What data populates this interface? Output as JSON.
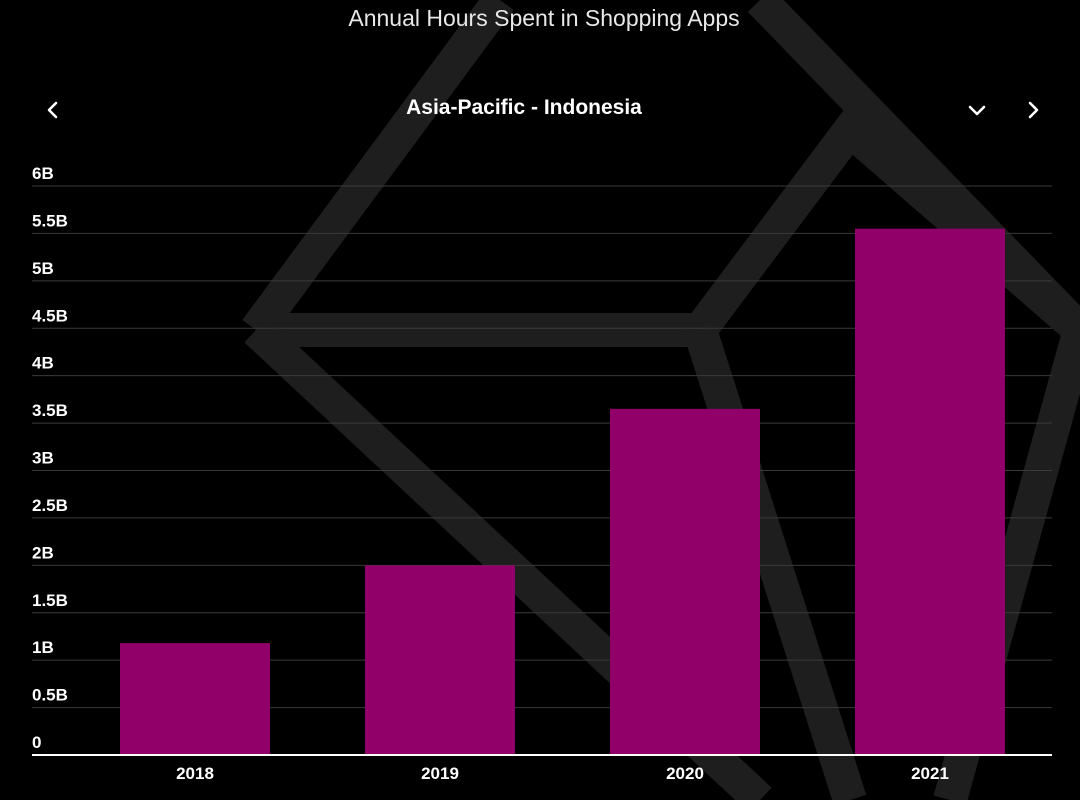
{
  "title": "Annual Hours Spent in Shopping Apps",
  "region": "Asia-Pacific - Indonesia",
  "colors": {
    "background": "#000000",
    "bar": "#900068",
    "grid": "#3a3a3a",
    "axis": "#ffffff",
    "decoration": "#1e1e1e"
  },
  "icons": {
    "prev": "chevron-left-icon",
    "dropdown": "chevron-down-icon",
    "next": "chevron-right-icon"
  },
  "chart_data": {
    "type": "bar",
    "title": "Annual Hours Spent in Shopping Apps",
    "subtitle": "Asia-Pacific - Indonesia",
    "categories": [
      "2018",
      "2019",
      "2020",
      "2021"
    ],
    "values": [
      1.18,
      2.0,
      3.65,
      5.55
    ],
    "value_unit": "B",
    "ylim": [
      0,
      6
    ],
    "yticks": [
      {
        "value": 0,
        "label": "0"
      },
      {
        "value": 0.5,
        "label": "0.5B"
      },
      {
        "value": 1,
        "label": "1B"
      },
      {
        "value": 1.5,
        "label": "1.5B"
      },
      {
        "value": 2,
        "label": "2B"
      },
      {
        "value": 2.5,
        "label": "2.5B"
      },
      {
        "value": 3,
        "label": "3B"
      },
      {
        "value": 3.5,
        "label": "3.5B"
      },
      {
        "value": 4,
        "label": "4B"
      },
      {
        "value": 4.5,
        "label": "4.5B"
      },
      {
        "value": 5,
        "label": "5B"
      },
      {
        "value": 5.5,
        "label": "5.5B"
      },
      {
        "value": 6,
        "label": "6B"
      }
    ],
    "xlabel": "",
    "ylabel": "",
    "grid": true,
    "legend": "none"
  }
}
